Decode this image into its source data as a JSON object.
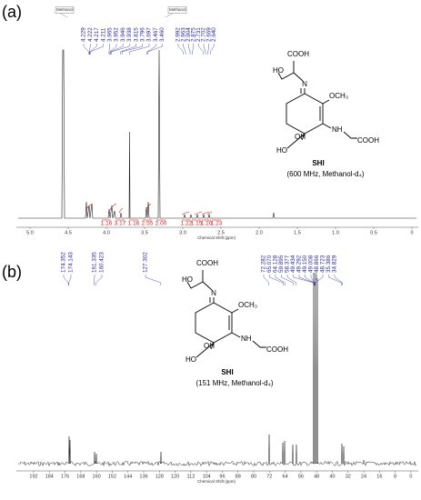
{
  "panel_a": {
    "label": "(a)",
    "solvent_labels": [
      "Methanol",
      "Methanol"
    ],
    "peak_labels": [
      "4.229",
      "4.222",
      "4.217",
      "4.211",
      "3.965",
      "3.952",
      "3.946",
      "3.938",
      "3.815",
      "3.796",
      "3.697",
      "3.467",
      "3.460",
      "2.992",
      "2.963",
      "2.904",
      "2.875",
      "2.731",
      "2.702",
      "2.669",
      "2.640"
    ],
    "integrals": [
      "1.16",
      "3.17",
      "1.16",
      "2.55",
      "2.00",
      "1.22",
      "1.15",
      "1.20",
      "1.23"
    ],
    "x_ticks": [
      "5.0",
      "4.5",
      "4.0",
      "3.5",
      "3.0",
      "2.5",
      "2.0",
      "1.5",
      "1.0",
      "0.5",
      "0"
    ],
    "x_axis_label": "Chemical Shift (ppm)",
    "structure": {
      "labels": [
        "COOH",
        "HO",
        "N",
        "OCH₃",
        "OH",
        "HO",
        "NH",
        "COOH"
      ],
      "name": "SHI",
      "conditions": "(600 MHz, Methanol-d₄)"
    }
  },
  "panel_b": {
    "label": "(b)",
    "peak_labels": [
      "174.352",
      "174.143",
      "161.335",
      "160.423",
      "127.302",
      "72.282",
      "65.070",
      "64.128",
      "59.895",
      "58.377",
      "49.434",
      "49.292",
      "49.150",
      "49.008",
      "48.866",
      "48.723",
      "35.386",
      "34.829"
    ],
    "x_ticks": [
      "192",
      "184",
      "176",
      "168",
      "160",
      "152",
      "144",
      "136",
      "128",
      "120",
      "112",
      "104",
      "96",
      "88",
      "80",
      "72",
      "64",
      "56",
      "48",
      "40",
      "32",
      "24",
      "16",
      "8",
      "0"
    ],
    "x_axis_label": "Chemical Shift (ppm)",
    "structure": {
      "labels": [
        "COOH",
        "HO",
        "N",
        "OCH₃",
        "OH",
        "HO",
        "NH",
        "COOH"
      ],
      "name": "SHI",
      "conditions": "(151 MHz, Methanol-d₄)"
    }
  }
}
